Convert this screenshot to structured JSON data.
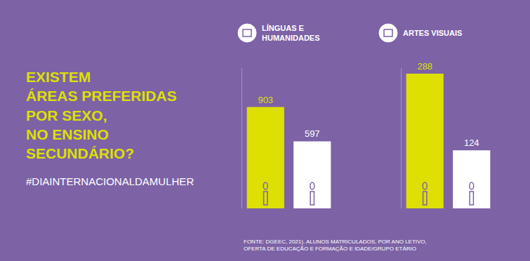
{
  "headline": [
    "EXISTEM",
    "ÁREAS PREFERIDAS",
    "POR SEXO,",
    "NO ENSINO",
    "SECUNDÁRIO?"
  ],
  "hashtag": "#DIAINTERNACIONALDAMULHER",
  "source": [
    "FONTE: DGEEC, 2021). ALUNOS MATRICULADOS, POR ANO LETIVO,",
    "OFERTA DE EDUCAÇÃO E FORMAÇÃO E IDADE/GRUPO ETÁRIO"
  ],
  "chart_data": [
    {
      "type": "bar",
      "title": "LÍNGUAS E HUMANIDADES",
      "categories": [
        null,
        null
      ],
      "values": [
        903,
        597
      ],
      "colors": [
        "#dde000",
        "#ffffff"
      ],
      "ylim": [
        0,
        1250
      ],
      "data_labels": true,
      "tick_labels": false,
      "grid": false
    },
    {
      "type": "bar",
      "title": "ARTES VISUAIS",
      "categories": [
        null,
        null
      ],
      "values": [
        288,
        124
      ],
      "colors": [
        "#dde000",
        "#ffffff"
      ],
      "ylim": [
        0,
        300
      ],
      "data_labels": true,
      "tick_labels": false,
      "grid": false
    }
  ]
}
